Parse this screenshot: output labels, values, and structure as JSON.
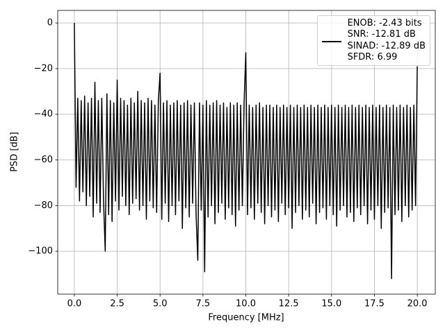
{
  "chart_data": {
    "type": "line",
    "xlabel": "Frequency [MHz]",
    "ylabel": "PSD [dB]",
    "xlim": [
      -0.97,
      21.05
    ],
    "ylim": [
      -118.8,
      5.5
    ],
    "xticks": [
      {
        "value": 0,
        "label": "0.0"
      },
      {
        "value": 2.5,
        "label": "2.5"
      },
      {
        "value": 5,
        "label": "5.0"
      },
      {
        "value": 7.5,
        "label": "7.5"
      },
      {
        "value": 10,
        "label": "10.0"
      },
      {
        "value": 12.5,
        "label": "12.5"
      },
      {
        "value": 15,
        "label": "15.0"
      },
      {
        "value": 17.5,
        "label": "17.5"
      },
      {
        "value": 20,
        "label": "20.0"
      }
    ],
    "yticks": [
      0,
      {
        "value": -20,
        "label": "−20"
      },
      {
        "value": -40,
        "label": "−40"
      },
      {
        "value": -60,
        "label": "−60"
      },
      {
        "value": -80,
        "label": "−80"
      },
      {
        "value": -100,
        "label": "−100"
      }
    ],
    "grid": true,
    "legend": "upper right",
    "x": [
      0,
      0.1,
      0.2,
      0.3,
      0.4,
      0.5,
      0.6,
      0.7,
      0.8,
      0.9,
      1,
      1.1,
      1.2,
      1.3,
      1.4,
      1.5,
      1.6,
      1.7,
      1.8,
      1.9,
      2,
      2.1,
      2.2,
      2.3,
      2.4,
      2.5,
      2.6,
      2.7,
      2.8,
      2.9,
      3,
      3.1,
      3.2,
      3.3,
      3.4,
      3.5,
      3.6,
      3.7,
      3.8,
      3.9,
      4,
      4.1,
      4.2,
      4.3,
      4.4,
      4.5,
      4.6,
      4.7,
      4.8,
      4.9,
      5,
      5.1,
      5.2,
      5.3,
      5.4,
      5.5,
      5.6,
      5.7,
      5.8,
      5.9,
      6,
      6.1,
      6.2,
      6.3,
      6.4,
      6.5,
      6.6,
      6.7,
      6.8,
      6.9,
      7,
      7.1,
      7.2,
      7.3,
      7.4,
      7.5,
      7.6,
      7.7,
      7.8,
      7.9,
      8,
      8.1,
      8.2,
      8.3,
      8.4,
      8.5,
      8.6,
      8.7,
      8.8,
      8.9,
      9,
      9.1,
      9.2,
      9.3,
      9.4,
      9.5,
      9.6,
      9.7,
      9.8,
      9.9,
      10,
      10.1,
      10.2,
      10.3,
      10.4,
      10.5,
      10.6,
      10.7,
      10.8,
      10.9,
      11,
      11.1,
      11.2,
      11.3,
      11.4,
      11.5,
      11.6,
      11.7,
      11.8,
      11.9,
      12,
      12.1,
      12.2,
      12.3,
      12.4,
      12.5,
      12.6,
      12.7,
      12.8,
      12.9,
      13,
      13.1,
      13.2,
      13.3,
      13.4,
      13.5,
      13.6,
      13.7,
      13.8,
      13.9,
      14,
      14.1,
      14.2,
      14.3,
      14.4,
      14.5,
      14.6,
      14.7,
      14.8,
      14.9,
      15,
      15.1,
      15.2,
      15.3,
      15.4,
      15.5,
      15.6,
      15.7,
      15.8,
      15.9,
      16,
      16.1,
      16.2,
      16.3,
      16.4,
      16.5,
      16.6,
      16.7,
      16.8,
      16.9,
      17,
      17.1,
      17.2,
      17.3,
      17.4,
      17.5,
      17.6,
      17.7,
      17.8,
      17.9,
      18,
      18.1,
      18.2,
      18.3,
      18.4,
      18.5,
      18.6,
      18.7,
      18.8,
      18.9,
      19,
      19.1,
      19.2,
      19.3,
      19.4,
      19.5,
      19.6,
      19.7,
      19.8,
      19.9,
      20
    ],
    "series": [
      {
        "name": "ENOB: -2.43 bits\nSNR: -12.81 dB\nSINAD: -12.89 dB\nSFDR: 6.99",
        "color": "#000000",
        "values": [
          0,
          -72,
          -33,
          -78,
          -34,
          -74,
          -32,
          -80,
          -35,
          -76,
          -33,
          -85,
          -26,
          -79,
          -34,
          -83,
          -33,
          -77,
          -100,
          -31,
          -84,
          -34,
          -87,
          -35,
          -78,
          -25,
          -82,
          -33,
          -76,
          -34,
          -80,
          -36,
          -84,
          -33,
          -79,
          -35,
          -77,
          -30,
          -82,
          -34,
          -80,
          -35,
          -86,
          -33,
          -78,
          -34,
          -81,
          -36,
          -83,
          -34,
          -22,
          -86,
          -35,
          -79,
          -34,
          -87,
          -36,
          -80,
          -35,
          -84,
          -34,
          -78,
          -36,
          -90,
          -35,
          -81,
          -34,
          -85,
          -36,
          -79,
          -35,
          -84,
          -104,
          -35,
          -82,
          -36,
          -109,
          -34,
          -85,
          -36,
          -80,
          -35,
          -88,
          -34,
          -83,
          -36,
          -79,
          -35,
          -86,
          -37,
          -81,
          -35,
          -84,
          -36,
          -89,
          -35,
          -82,
          -36,
          -80,
          -35,
          -13,
          -84,
          -36,
          -81,
          -37,
          -86,
          -36,
          -79,
          -35,
          -83,
          -37,
          -88,
          -36,
          -80,
          -36,
          -85,
          -37,
          -82,
          -36,
          -87,
          -37,
          -79,
          -36,
          -84,
          -37,
          -81,
          -36,
          -90,
          -37,
          -83,
          -36,
          -80,
          -37,
          -86,
          -36,
          -82,
          -37,
          -85,
          -36,
          -79,
          -37,
          -88,
          -36,
          -83,
          -37,
          -81,
          -36,
          -86,
          -37,
          -80,
          -36,
          -84,
          -37,
          -89,
          -36,
          -82,
          -37,
          -80,
          -36,
          -85,
          -37,
          -83,
          -36,
          -87,
          -37,
          -81,
          -36,
          -84,
          -37,
          -80,
          -36,
          -88,
          -37,
          -82,
          -36,
          -86,
          -37,
          -80,
          -36,
          -90,
          -37,
          -83,
          -36,
          -81,
          -37,
          -112,
          -36,
          -84,
          -37,
          -82,
          -36,
          -87,
          -37,
          -80,
          -36,
          -85,
          -37,
          -82,
          -36,
          -80,
          -19
        ]
      }
    ]
  }
}
